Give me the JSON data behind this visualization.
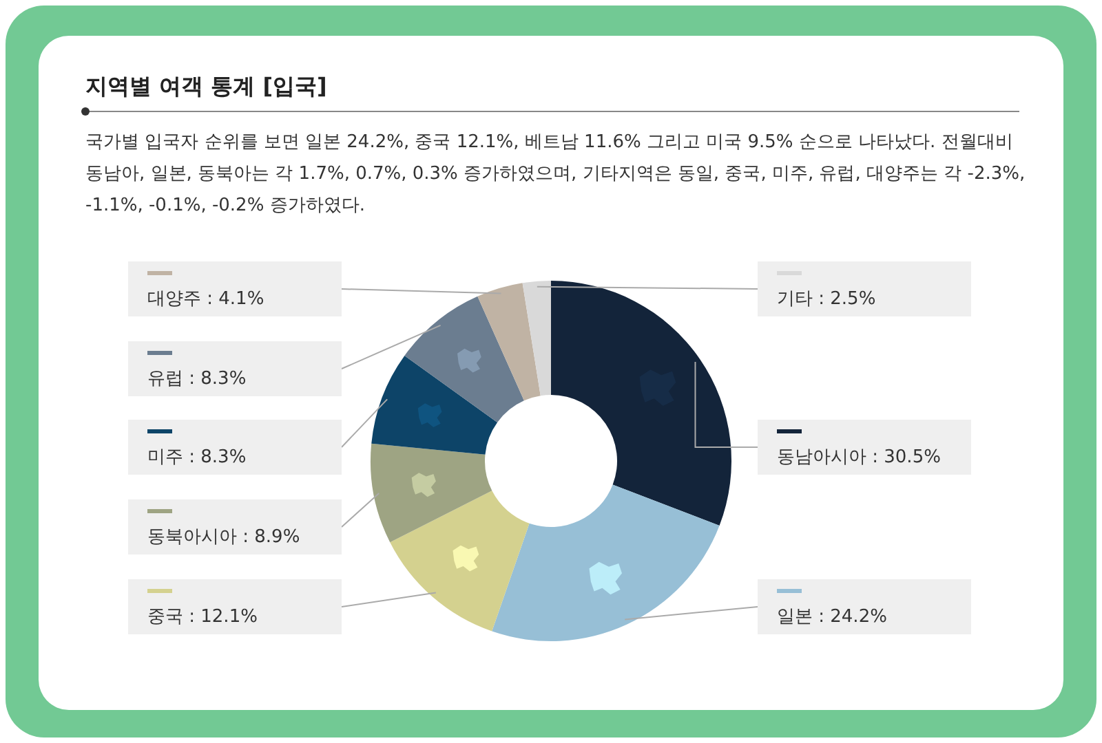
{
  "chart_data": {
    "type": "donut",
    "title": "지역별 여객 통계 [입국]",
    "subtitle": "국가별 입국자 순위를 보면 일본 24.2%, 중국 12.1%, 베트남 11.6% 그리고 미국 9.5% 순으로 나타났다. 전월대비 동남아, 일본, 동북아는 각 1.7%, 0.7%, 0.3% 증가하였으며, 기타지역은 동일, 중국, 미주, 유럽, 대양주는 각 -2.3%, -1.1%, -0.1%, -0.2% 증가하였다.",
    "categories": [
      "동남아시아",
      "일본",
      "중국",
      "동북아시아",
      "미주",
      "유럽",
      "대양주",
      "기타"
    ],
    "values": [
      30.5,
      24.2,
      12.1,
      8.9,
      8.3,
      8.3,
      4.1,
      2.5
    ],
    "value_labels": [
      "30.5%",
      "24.2%",
      "12.1%",
      "8.9%",
      "8.3%",
      "8.3%",
      "4.1%",
      "2.5%"
    ],
    "colors": [
      "#13243a",
      "#97bfd6",
      "#d4d18f",
      "#9ea483",
      "#0d4468",
      "#6b7d90",
      "#c0b3a4",
      "#d9d9d9"
    ],
    "legend": "left"
  }
}
